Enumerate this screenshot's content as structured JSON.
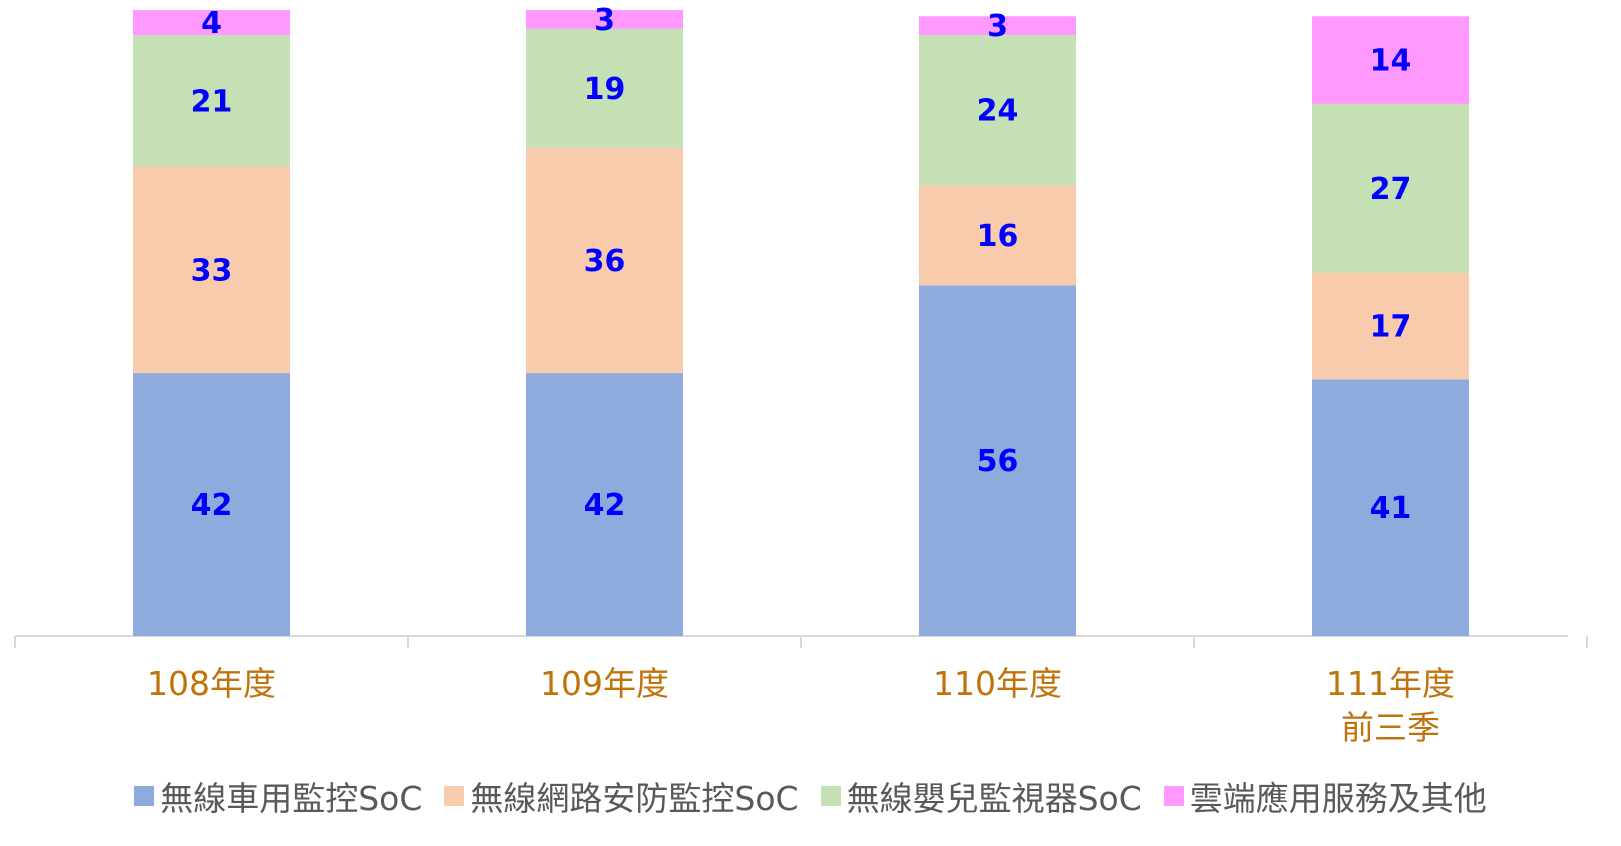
{
  "chart_data": {
    "type": "stacked_bar",
    "categories": [
      "108年度",
      "109年度",
      "110年度",
      "111年度\n前三季"
    ],
    "series": [
      {
        "name": "無線車用監控SoC",
        "color": "#8faadc",
        "values": [
          42,
          42,
          56,
          41
        ]
      },
      {
        "name": "無線網路安防監控SoC",
        "color": "#f8cbad",
        "values": [
          33,
          36,
          16,
          17
        ]
      },
      {
        "name": "無線嬰兒監視器SoC",
        "color": "#c5e0b4",
        "values": [
          21,
          19,
          24,
          27
        ]
      },
      {
        "name": "雲端應用服務及其他",
        "color": "#ff99ff",
        "values": [
          4,
          3,
          3,
          14
        ]
      }
    ]
  }
}
